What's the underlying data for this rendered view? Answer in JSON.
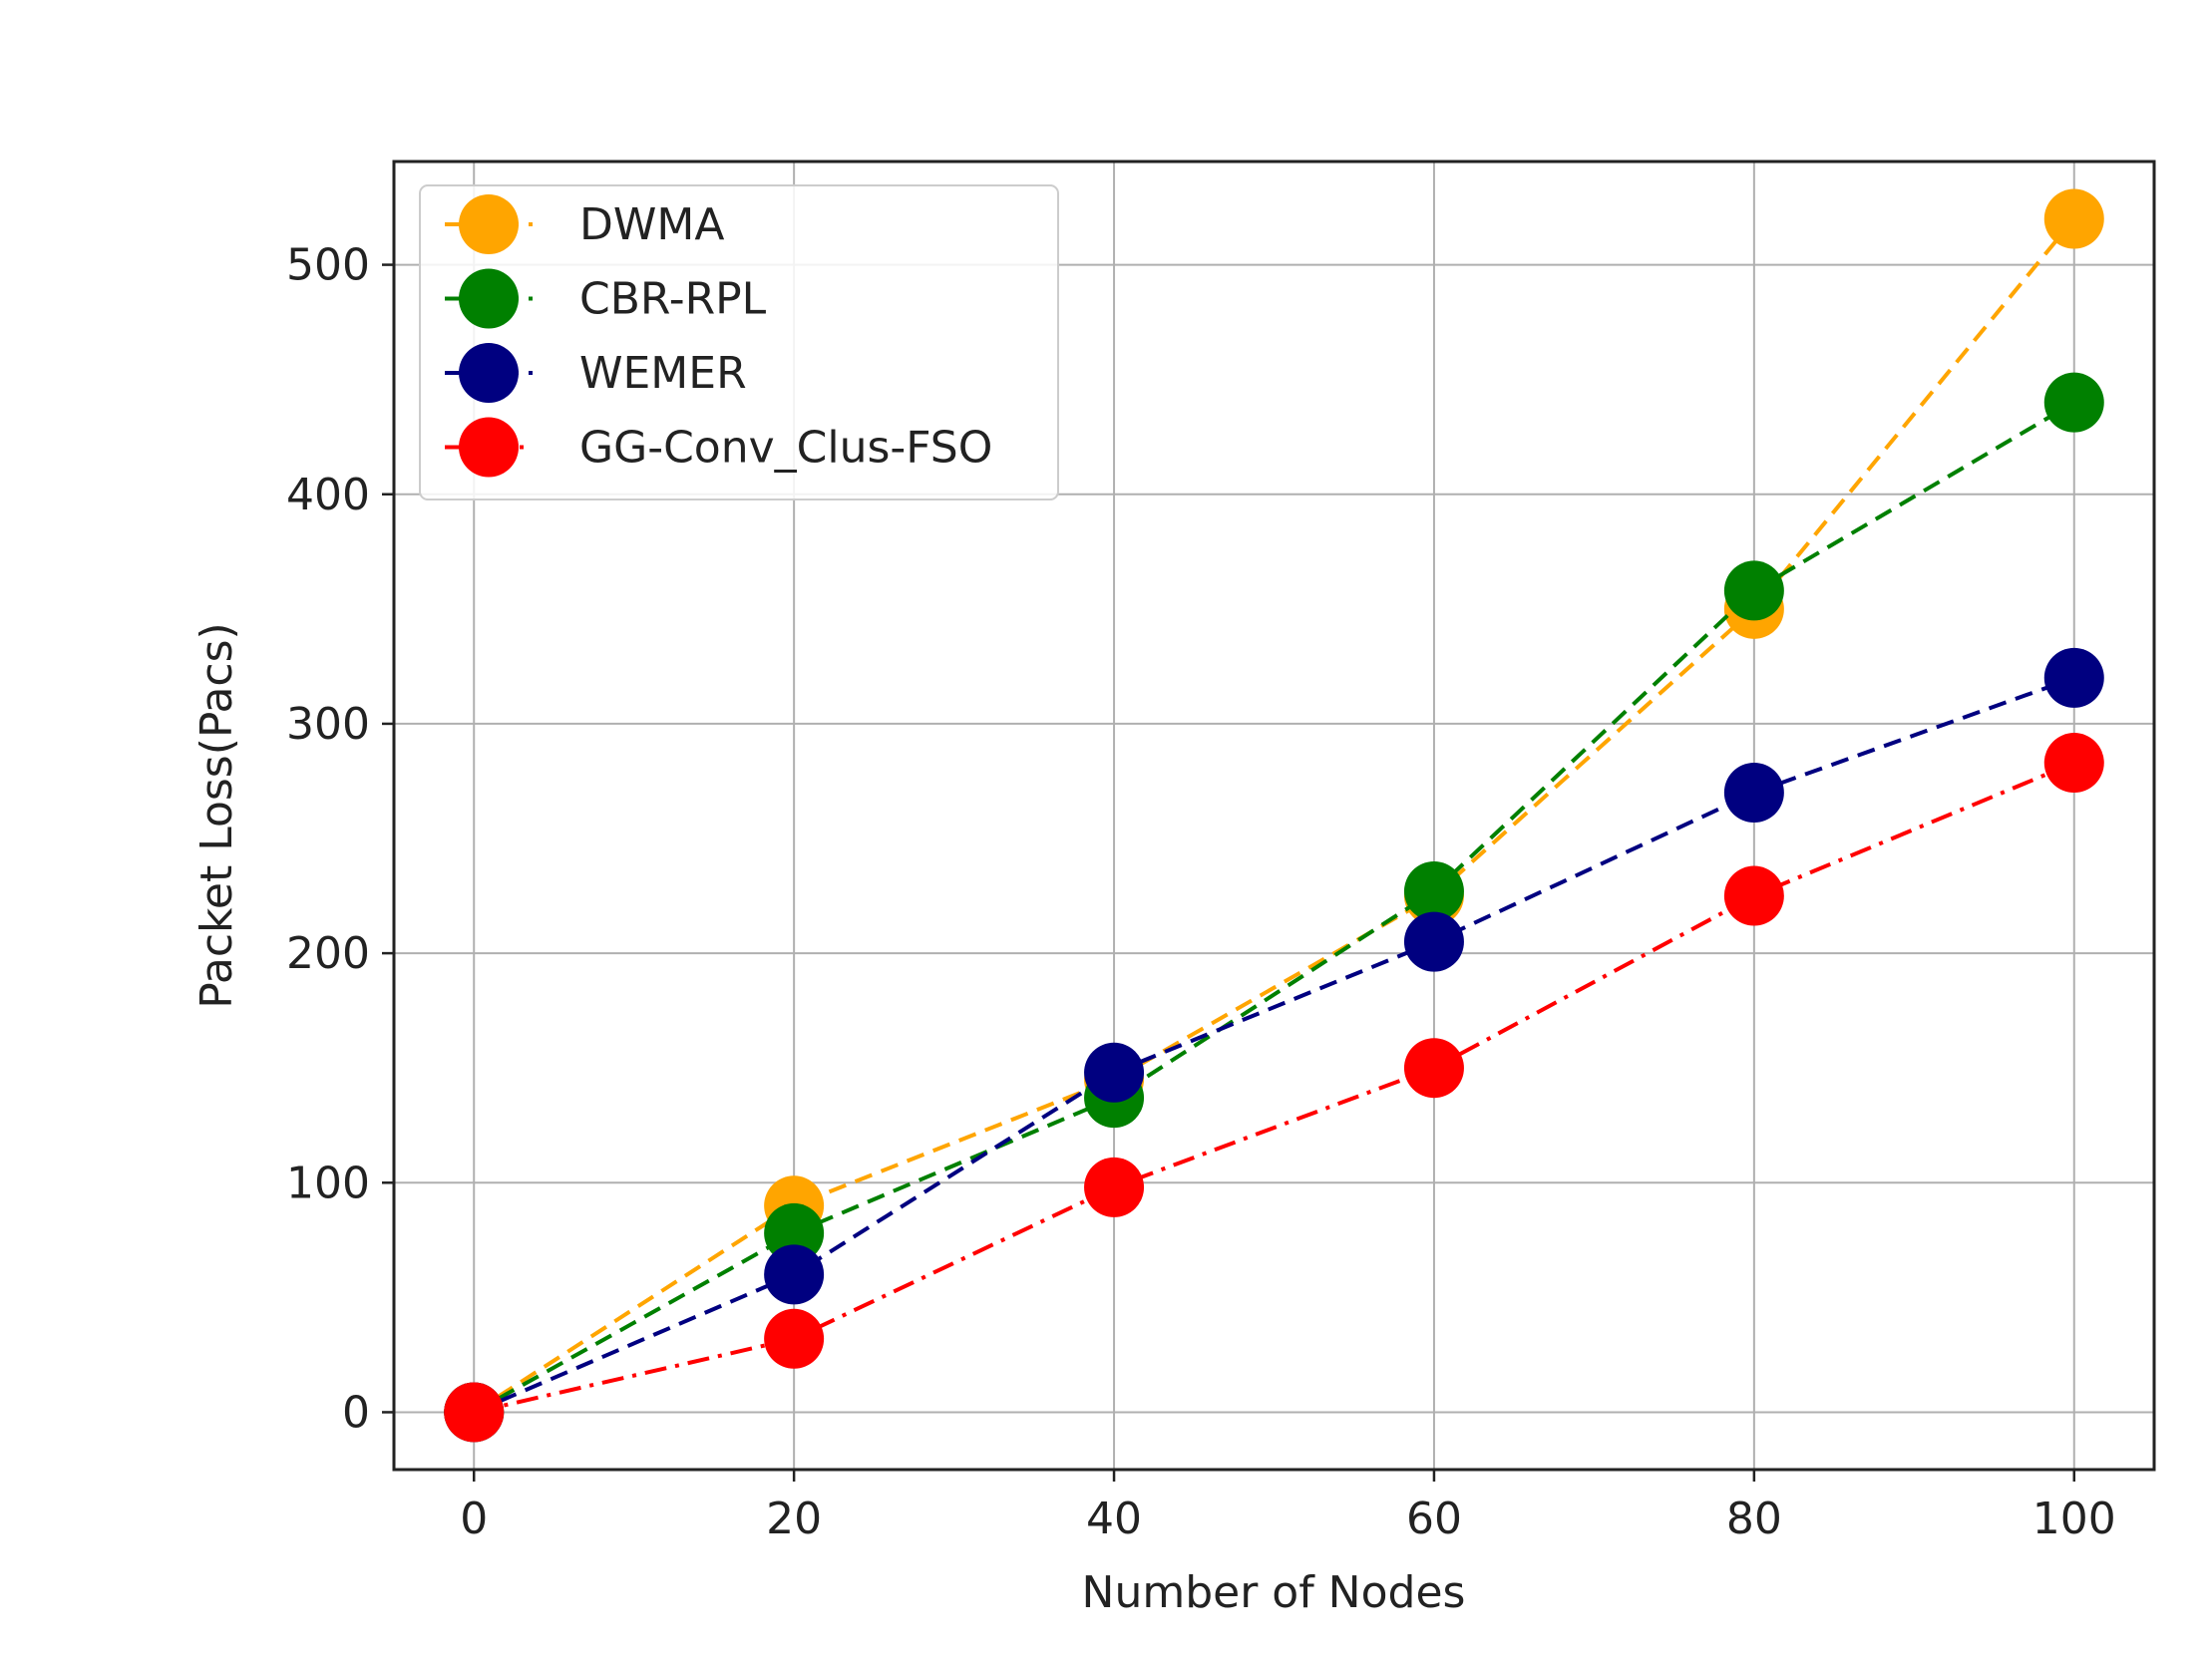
{
  "chart_data": {
    "type": "line",
    "title": "",
    "xlabel": "Number of Nodes",
    "ylabel": "Packet Loss(Pacs)",
    "x": [
      0,
      20,
      40,
      60,
      80,
      100
    ],
    "xlim": [
      -5,
      105
    ],
    "ylim": [
      -25,
      545
    ],
    "xticks": [
      0,
      20,
      40,
      60,
      80,
      100
    ],
    "yticks": [
      0,
      100,
      200,
      300,
      400,
      500
    ],
    "grid": true,
    "legend_position": "top-left",
    "series": [
      {
        "name": "DWMA",
        "color": "#FFA500",
        "linestyle": "dashed",
        "values": [
          0,
          90,
          145,
          225,
          350,
          520
        ]
      },
      {
        "name": "CBR-RPL",
        "color": "#008000",
        "linestyle": "dashed",
        "values": [
          0,
          78,
          137,
          227,
          358,
          440
        ]
      },
      {
        "name": "WEMER",
        "color": "#000080",
        "linestyle": "dashed",
        "values": [
          0,
          60,
          148,
          205,
          270,
          320
        ]
      },
      {
        "name": "GG-Conv_Clus-FSO",
        "color": "#FF0000",
        "linestyle": "dashdot",
        "values": [
          0,
          32,
          98,
          150,
          225,
          283
        ]
      }
    ]
  }
}
